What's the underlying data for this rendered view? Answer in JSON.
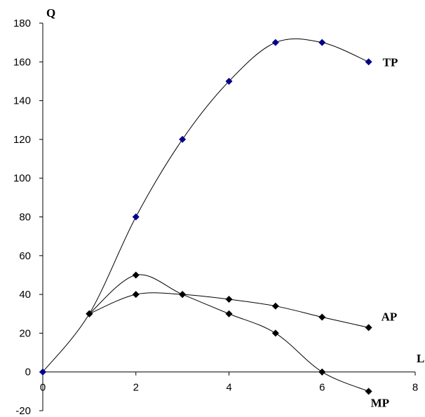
{
  "chart_data": {
    "type": "line",
    "title": "",
    "xlabel": "L",
    "ylabel": "Q",
    "xlim": [
      0,
      8
    ],
    "ylim": [
      -20,
      180
    ],
    "xticks": [
      0,
      2,
      4,
      6,
      8
    ],
    "yticks": [
      -20,
      0,
      20,
      40,
      60,
      80,
      100,
      120,
      140,
      160,
      180
    ],
    "grid": false,
    "series": [
      {
        "name": "TP",
        "color": "#00008B",
        "smooth": true,
        "x": [
          0,
          1,
          2,
          3,
          4,
          5,
          6,
          7
        ],
        "y": [
          0,
          30,
          80,
          120,
          150,
          170,
          170,
          160
        ]
      },
      {
        "name": "AP",
        "color": "#000000",
        "smooth": true,
        "x": [
          1,
          2,
          3,
          4,
          5,
          6,
          7
        ],
        "y": [
          30,
          40,
          40,
          37.5,
          34,
          28.3,
          22.9
        ]
      },
      {
        "name": "MP",
        "color": "#000000",
        "smooth": true,
        "x": [
          1,
          2,
          3,
          4,
          5,
          6,
          7
        ],
        "y": [
          30,
          50,
          40,
          30,
          20,
          0,
          -10
        ]
      }
    ]
  }
}
